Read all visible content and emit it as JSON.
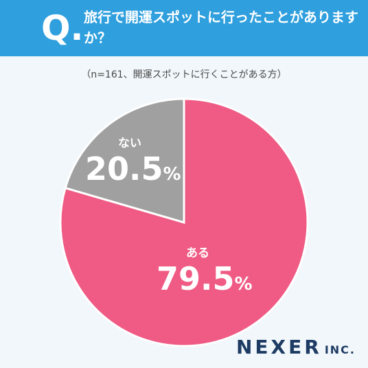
{
  "header": {
    "q": "Q.",
    "question": "旅行で開運スポットに行ったことがありますか？"
  },
  "note": "（n=161、開運スポットに行くことがある方）",
  "chart_data": {
    "type": "pie",
    "slices": [
      {
        "label": "ある",
        "value": 79.5,
        "color": "#ef5b84"
      },
      {
        "label": "ない",
        "value": 20.5,
        "color": "#a0a0a0"
      }
    ],
    "unit": "%",
    "start": "12 o'clock",
    "direction": "clockwise"
  },
  "logo": {
    "name": "NEXER",
    "suffix": "INC."
  }
}
